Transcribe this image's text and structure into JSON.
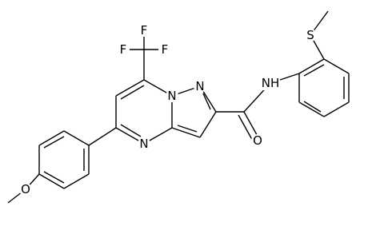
{
  "labels": [
    "F",
    "F",
    "F",
    "N",
    "N",
    "N",
    "NH",
    "S",
    "O",
    "O"
  ]
}
